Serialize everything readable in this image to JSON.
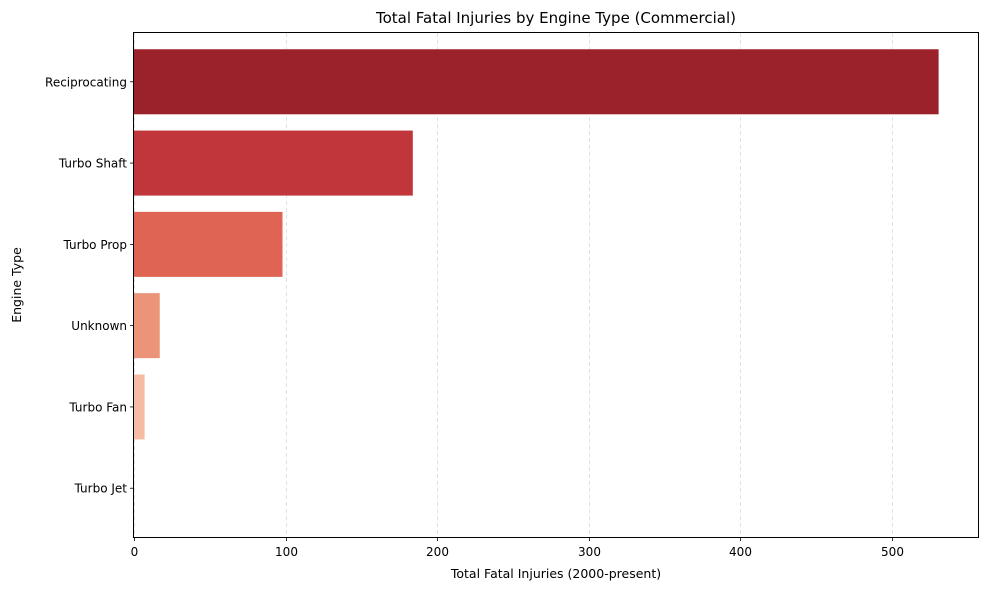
{
  "chart_data": {
    "type": "bar",
    "orientation": "horizontal",
    "title": "Total Fatal Injuries by Engine Type (Commercial)",
    "xlabel": "Total Fatal Injuries (2000-present)",
    "ylabel": "Engine Type",
    "categories": [
      "Reciprocating",
      "Turbo Shaft",
      "Turbo Prop",
      "Unknown",
      "Turbo Fan",
      "Turbo Jet"
    ],
    "values": [
      531,
      184,
      98,
      17,
      7,
      0
    ],
    "colors": [
      "#9b222a",
      "#c0363a",
      "#e06453",
      "#eb9479",
      "#f5bba3",
      "#fde0d0"
    ],
    "xlim": [
      0,
      557
    ],
    "xticks": [
      0,
      100,
      200,
      300,
      400,
      500
    ],
    "grid": {
      "x": true,
      "y": false,
      "style": "dashed"
    }
  }
}
